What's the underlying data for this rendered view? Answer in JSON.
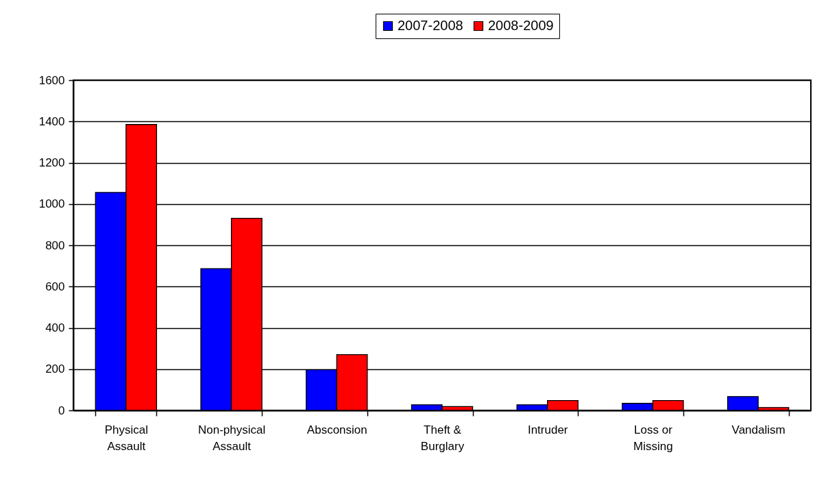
{
  "chart_data": {
    "type": "bar",
    "categories": [
      "Physical Assault",
      "Non-physical Assault",
      "Absconsion",
      "Theft & Burglary",
      "Intruder",
      "Loss or Missing",
      "Vandalism"
    ],
    "series": [
      {
        "name": "2007-2008",
        "color": "#0000ff",
        "values": [
          1056,
          687,
          197,
          27,
          27,
          34,
          67
        ]
      },
      {
        "name": "2008-2009",
        "color": "#ff0000",
        "values": [
          1385,
          931,
          270,
          19,
          48,
          48,
          14
        ]
      }
    ],
    "ylim": [
      0,
      1600
    ],
    "yticks": [
      0,
      200,
      400,
      600,
      800,
      1000,
      1200,
      1400,
      1600
    ],
    "grid": "y",
    "legend": "top"
  }
}
